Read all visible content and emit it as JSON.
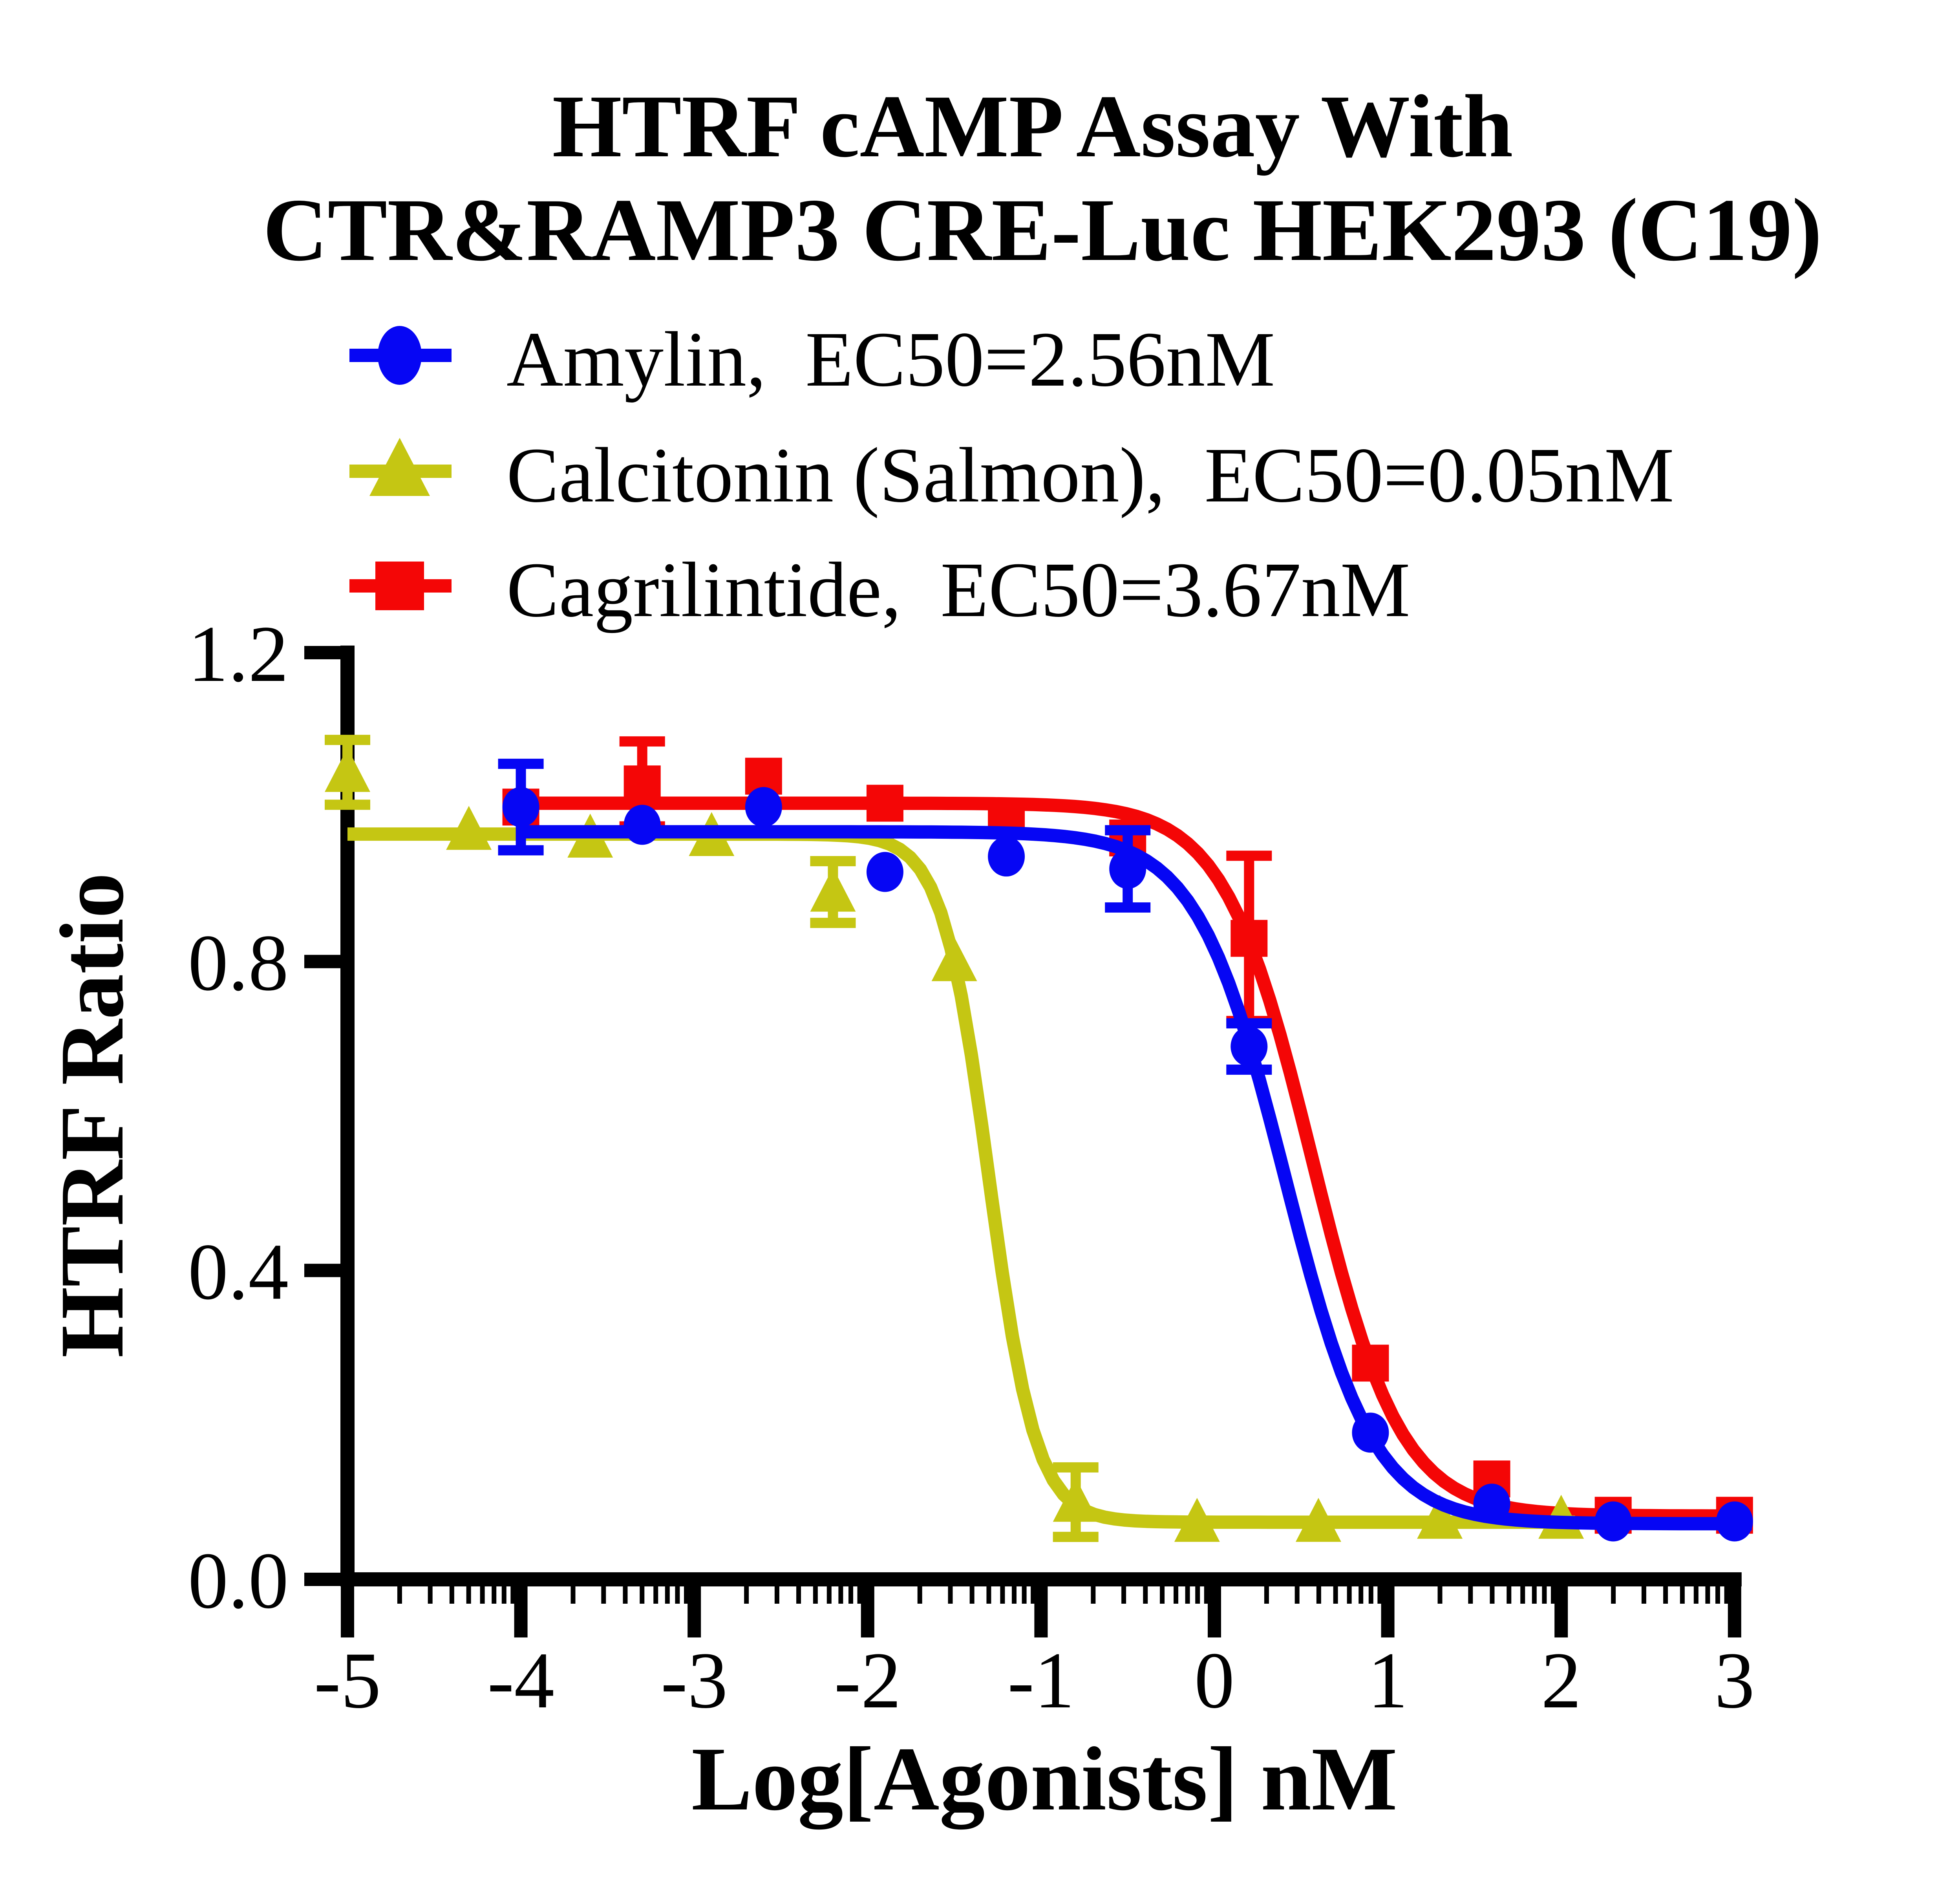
{
  "title": {
    "line1": "HTRF cAMP Assay With",
    "line2": "CTR&RAMP3 CRE-Luc HEK293 (C19)"
  },
  "legend": {
    "position": "top-left",
    "items": [
      {
        "label": "Amylin,  EC50=2.56nM",
        "marker": "circle",
        "color": "#0606f4"
      },
      {
        "label": "Calcitonin (Salmon),  EC50=0.05nM",
        "marker": "triangle",
        "color": "#c5c613"
      },
      {
        "label": "Cagrilintide,  EC50=3.67nM",
        "marker": "square",
        "color": "#f40606"
      }
    ]
  },
  "chart_data": {
    "type": "scatter",
    "title": "HTRF cAMP Assay With CTR&RAMP3 CRE-Luc HEK293 (C19)",
    "xlabel": "Log[Agonists] nM",
    "ylabel": "HTRF Ratio",
    "xlim": [
      -5,
      3
    ],
    "ylim": [
      0.0,
      1.2
    ],
    "x_ticks": [
      -5,
      -4,
      -3,
      -2,
      -1,
      0,
      1,
      2,
      3
    ],
    "x_tick_labels": [
      "-5",
      "-4",
      "-3",
      "-2",
      "-1",
      "0",
      "1",
      "2",
      "3"
    ],
    "y_ticks": [
      0.0,
      0.4,
      0.8,
      1.2
    ],
    "y_tick_labels": [
      "0.0",
      "0.4",
      "0.8",
      "1.2"
    ],
    "x_minor_ticks_log": true,
    "grid": false,
    "legend_position": "top-left",
    "series": [
      {
        "name": "Cagrilintide",
        "ec50_nM": 3.67,
        "marker": "square",
        "color": "#f40606",
        "x": [
          -4.0,
          -3.3,
          -2.6,
          -1.9,
          -1.2,
          -0.5,
          0.2,
          0.9,
          1.6,
          2.3,
          3.0
        ],
        "y": [
          1.0,
          1.03,
          1.04,
          1.005,
          0.985,
          0.96,
          0.83,
          0.28,
          0.13,
          0.083,
          0.083
        ],
        "yerr": [
          null,
          0.055,
          null,
          null,
          null,
          null,
          0.107,
          null,
          null,
          null,
          null
        ],
        "fit": {
          "top": 1.005,
          "bottom": 0.082,
          "logEC50": 0.565,
          "hill": 1.7,
          "x_start": -4.0,
          "x_end": 3.1
        }
      },
      {
        "name": "Calcitonin (Salmon)",
        "ec50_nM": 0.05,
        "marker": "triangle",
        "color": "#c5c613",
        "x": [
          -5.0,
          -4.3,
          -3.6,
          -2.9,
          -2.2,
          -1.5,
          -0.8,
          -0.1,
          0.6,
          1.3,
          2.0
        ],
        "y": [
          1.045,
          0.97,
          0.96,
          0.962,
          0.89,
          0.8,
          0.1,
          0.074,
          0.074,
          0.078,
          0.078
        ],
        "yerr": [
          0.042,
          null,
          null,
          null,
          0.04,
          null,
          0.045,
          null,
          null,
          null,
          null
        ],
        "fit": {
          "top": 0.965,
          "bottom": 0.074,
          "logEC50": -1.3,
          "hill": 3.2,
          "x_start": -5.0,
          "x_end": 2.08
        }
      },
      {
        "name": "Amylin",
        "ec50_nM": 2.56,
        "marker": "circle",
        "color": "#0606f4",
        "x": [
          -4.0,
          -3.3,
          -2.6,
          -1.9,
          -1.2,
          -0.5,
          0.2,
          0.9,
          1.6,
          2.3,
          3.0
        ],
        "y": [
          1.0,
          0.977,
          1.0,
          0.916,
          0.936,
          0.92,
          0.69,
          0.19,
          0.098,
          0.075,
          0.075
        ],
        "yerr": [
          0.056,
          null,
          null,
          null,
          null,
          0.05,
          0.03,
          null,
          null,
          null,
          null
        ],
        "fit": {
          "top": 0.968,
          "bottom": 0.072,
          "logEC50": 0.408,
          "hill": 1.7,
          "x_start": -4.0,
          "x_end": 3.1
        }
      }
    ]
  }
}
